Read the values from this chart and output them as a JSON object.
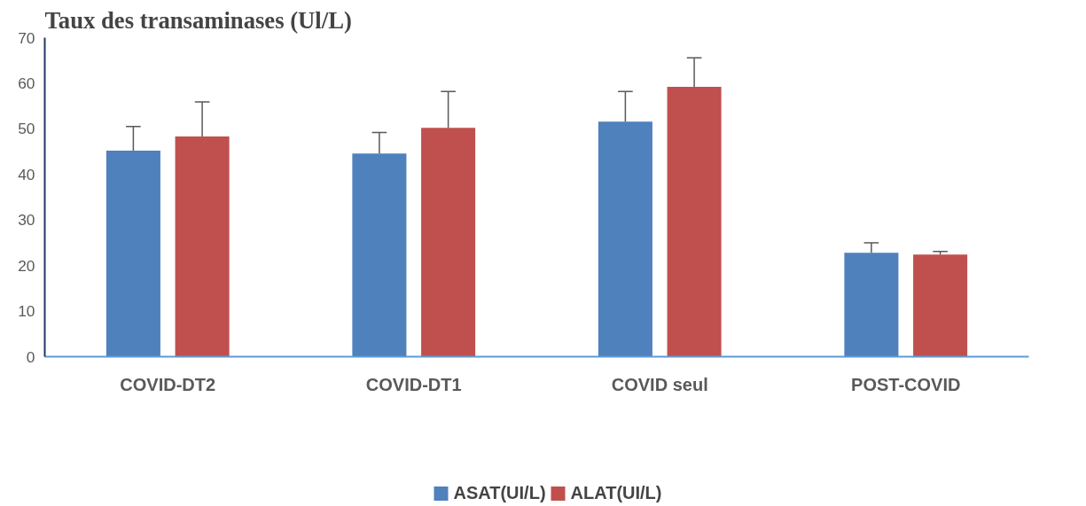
{
  "chart_data": {
    "type": "bar",
    "title": "Taux des transaminases (Ul/L)",
    "categories": [
      "COVID-DT2",
      "COVID-DT1",
      "COVID seul",
      "POST-COVID"
    ],
    "series": [
      {
        "name": "ASAT(UI/L)",
        "color": "#4f81bd",
        "values": [
          45.2,
          44.6,
          51.6,
          22.8
        ],
        "errors": [
          [
            45.2,
            50.5
          ],
          [
            44.6,
            49.2
          ],
          [
            51.6,
            58.2
          ],
          [
            22.8,
            25.0
          ]
        ]
      },
      {
        "name": "ALAT(UI/L)",
        "color": "#c0504d",
        "values": [
          48.3,
          50.2,
          59.2,
          22.4
        ],
        "errors": [
          [
            48.3,
            55.9
          ],
          [
            50.2,
            58.2
          ],
          [
            59.2,
            65.6
          ],
          [
            22.4,
            23.1
          ]
        ]
      }
    ],
    "ylim": [
      0,
      70
    ],
    "yticks": [
      0,
      10,
      20,
      30,
      40,
      50,
      60,
      70
    ],
    "grid": false,
    "legend": "bottom"
  }
}
